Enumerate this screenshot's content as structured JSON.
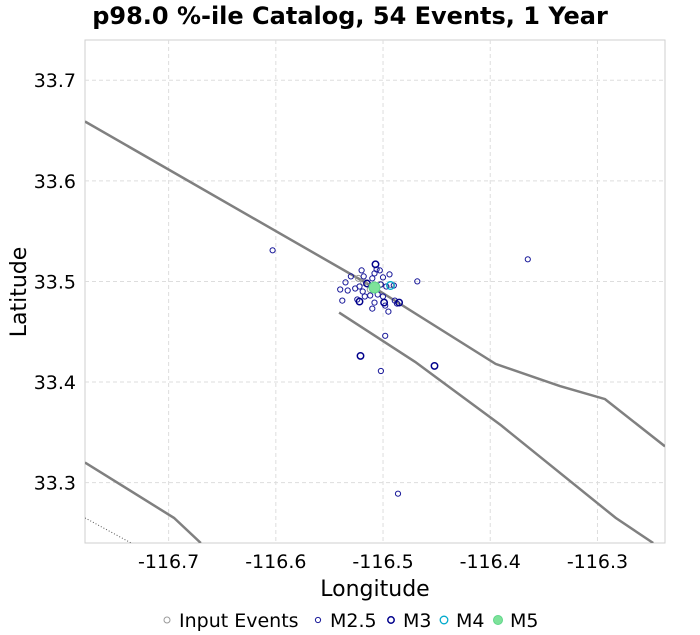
{
  "chart_data": {
    "type": "scatter",
    "title": "p98.0 %-ile Catalog, 54 Events, 1 Year",
    "xlabel": "Longitude",
    "ylabel": "Latitude",
    "xlim": [
      -116.778,
      -116.237
    ],
    "ylim": [
      33.24,
      33.74
    ],
    "x_ticks": [
      -116.7,
      -116.6,
      -116.5,
      -116.4,
      -116.3
    ],
    "y_ticks": [
      33.3,
      33.4,
      33.5,
      33.6,
      33.7
    ],
    "x_tick_labels": [
      "-116.7",
      "-116.6",
      "-116.5",
      "-116.4",
      "-116.3"
    ],
    "y_tick_labels": [
      "33.3",
      "33.4",
      "33.5",
      "33.6",
      "33.7"
    ],
    "grid": true,
    "legend_position": "bottom",
    "legend": [
      {
        "name": "Input Events",
        "key": "input",
        "color": "#9a9a9a"
      },
      {
        "name": "M2.5",
        "key": "m25",
        "color": "#1a1a9a"
      },
      {
        "name": "M3",
        "key": "m3",
        "color": "#00008b"
      },
      {
        "name": "M4",
        "key": "m4",
        "color": "#00aacc"
      },
      {
        "name": "M5",
        "key": "m5",
        "color": "#7ee29a"
      }
    ],
    "faults": [
      {
        "style": "solid",
        "points": [
          [
            -116.778,
            33.659
          ],
          [
            -116.51,
            33.495
          ],
          [
            -116.395,
            33.418
          ],
          [
            -116.335,
            33.396
          ],
          [
            -116.293,
            33.383
          ],
          [
            -116.237,
            33.336
          ]
        ]
      },
      {
        "style": "solid",
        "points": [
          [
            -116.541,
            33.469
          ],
          [
            -116.47,
            33.42
          ],
          [
            -116.39,
            33.357
          ],
          [
            -116.283,
            33.265
          ],
          [
            -116.248,
            33.24
          ]
        ]
      },
      {
        "style": "solid",
        "points": [
          [
            -116.778,
            33.32
          ],
          [
            -116.695,
            33.265
          ],
          [
            -116.67,
            33.24
          ]
        ]
      },
      {
        "style": "dotted",
        "points": [
          [
            -116.778,
            33.265
          ],
          [
            -116.735,
            33.24
          ]
        ]
      }
    ],
    "series": [
      {
        "name": "Input Events",
        "key": "input",
        "points": [
          [
            -116.523,
            33.503
          ],
          [
            -116.503,
            33.497
          ],
          [
            -116.518,
            33.499
          ],
          [
            -116.493,
            33.497
          ],
          [
            -116.512,
            33.492
          ],
          [
            -116.506,
            33.495
          ]
        ]
      },
      {
        "name": "M2.5",
        "key": "m25",
        "points": [
          [
            -116.603,
            33.531
          ],
          [
            -116.365,
            33.522
          ],
          [
            -116.53,
            33.505
          ],
          [
            -116.535,
            33.499
          ],
          [
            -116.54,
            33.492
          ],
          [
            -116.533,
            33.491
          ],
          [
            -116.538,
            33.481
          ],
          [
            -116.52,
            33.511
          ],
          [
            -116.518,
            33.505
          ],
          [
            -116.506,
            33.512
          ],
          [
            -116.508,
            33.508
          ],
          [
            -116.51,
            33.503
          ],
          [
            -116.503,
            33.511
          ],
          [
            -116.5,
            33.504
          ],
          [
            -116.494,
            33.507
          ],
          [
            -116.49,
            33.496
          ],
          [
            -116.497,
            33.495
          ],
          [
            -116.502,
            33.497
          ],
          [
            -116.522,
            33.495
          ],
          [
            -116.526,
            33.493
          ],
          [
            -116.519,
            33.49
          ],
          [
            -116.517,
            33.485
          ],
          [
            -116.512,
            33.486
          ],
          [
            -116.505,
            33.487
          ],
          [
            -116.5,
            33.485
          ],
          [
            -116.508,
            33.479
          ],
          [
            -116.498,
            33.476
          ],
          [
            -116.495,
            33.47
          ],
          [
            -116.489,
            33.481
          ],
          [
            -116.487,
            33.478
          ],
          [
            -116.524,
            33.482
          ],
          [
            -116.51,
            33.473
          ],
          [
            -116.498,
            33.446
          ],
          [
            -116.502,
            33.411
          ],
          [
            -116.486,
            33.289
          ],
          [
            -116.468,
            33.5
          ]
        ]
      },
      {
        "name": "M3",
        "key": "m3",
        "points": [
          [
            -116.507,
            33.517
          ],
          [
            -116.522,
            33.48
          ],
          [
            -116.521,
            33.426
          ],
          [
            -116.452,
            33.416
          ],
          [
            -116.515,
            33.498
          ],
          [
            -116.499,
            33.479
          ],
          [
            -116.485,
            33.479
          ]
        ]
      },
      {
        "name": "M4",
        "key": "m4",
        "points": [
          [
            -116.493,
            33.496
          ]
        ]
      },
      {
        "name": "M5",
        "key": "m5",
        "points": [
          [
            -116.508,
            33.494
          ]
        ]
      }
    ]
  }
}
